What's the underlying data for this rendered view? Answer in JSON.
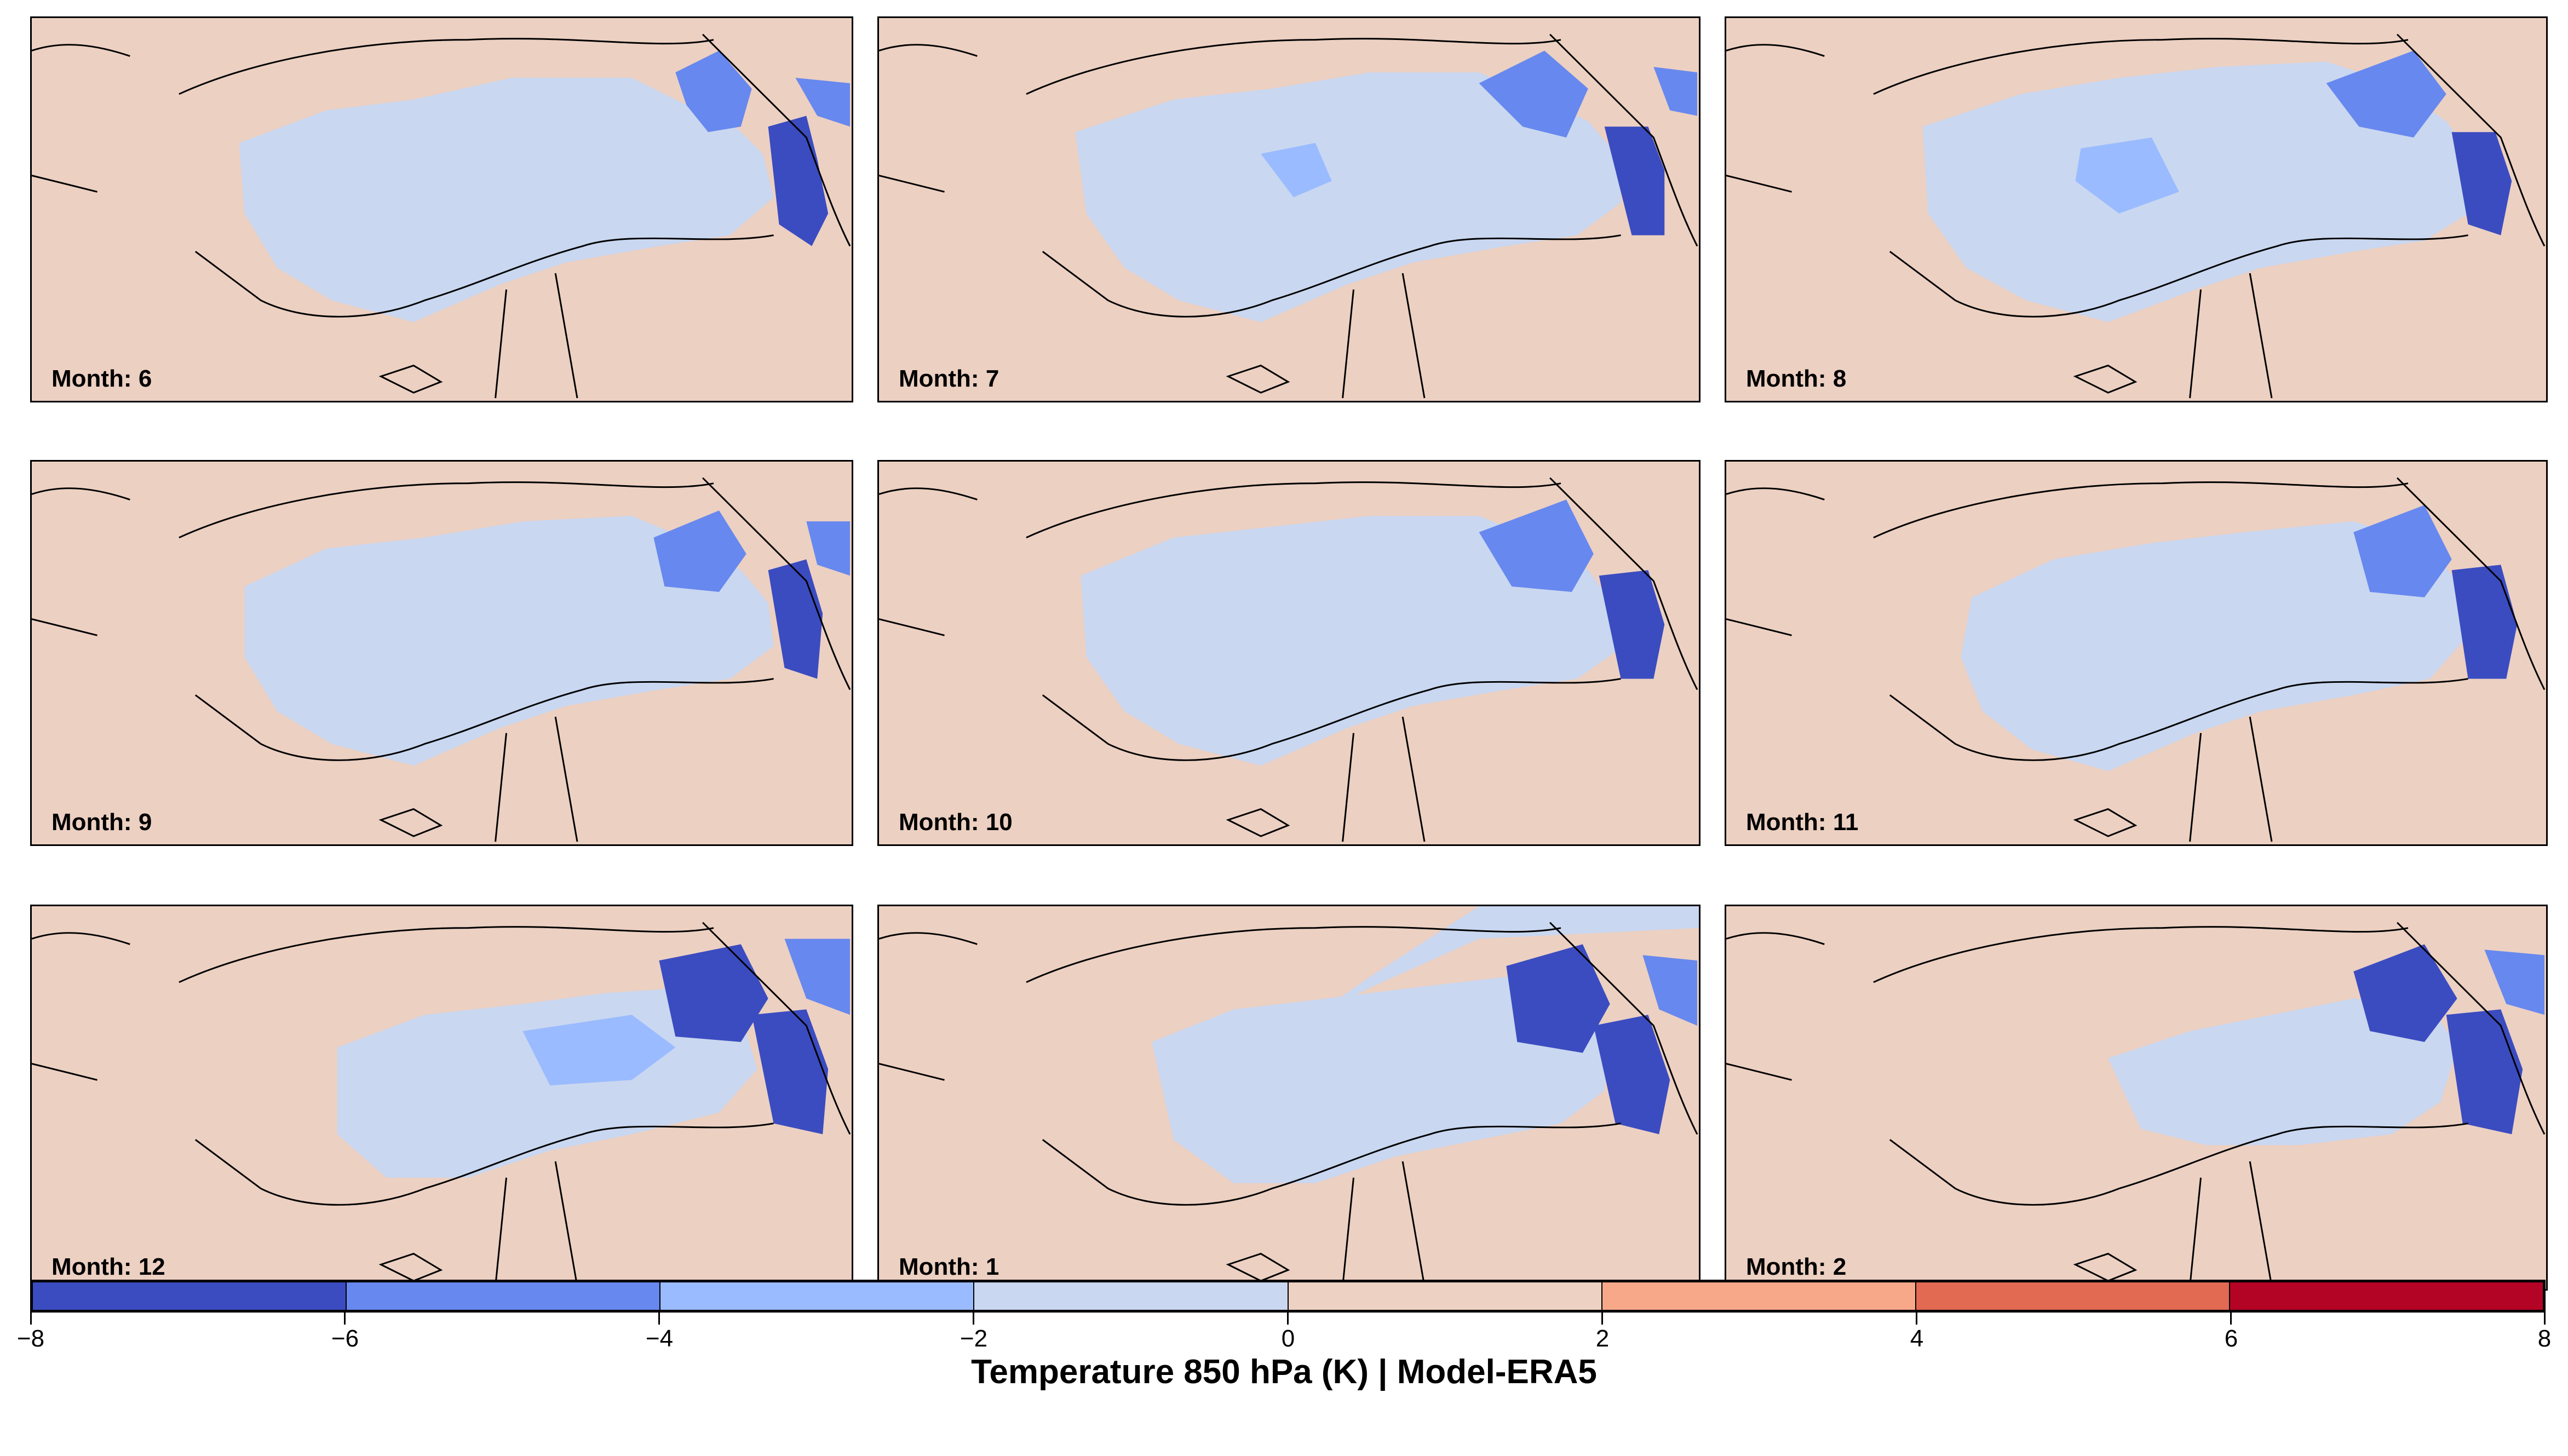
{
  "panels": [
    {
      "label": "Month: 6"
    },
    {
      "label": "Month: 7"
    },
    {
      "label": "Month: 8"
    },
    {
      "label": "Month: 9"
    },
    {
      "label": "Month: 10"
    },
    {
      "label": "Month: 11"
    },
    {
      "label": "Month: 12"
    },
    {
      "label": "Month: 1"
    },
    {
      "label": "Month: 2"
    }
  ],
  "colorbar": {
    "title": "Temperature 850 hPa (K) | Model-ERA5",
    "ticks": [
      "−8",
      "−6",
      "−4",
      "−2",
      "0",
      "2",
      "4",
      "6",
      "8"
    ],
    "colors": [
      "#3b4cc0",
      "#6788ee",
      "#9abbff",
      "#c9d7f0",
      "#edd1c2",
      "#f7a889",
      "#e26952",
      "#b40426"
    ]
  },
  "map_colors": {
    "land_near_zero_positive": "#ecd0c2",
    "land_near_zero_negative": "#c9d7f0",
    "moderate_negative": "#9abbff",
    "strong_negative": "#6788ee",
    "very_strong_negative": "#3b4cc0"
  }
}
